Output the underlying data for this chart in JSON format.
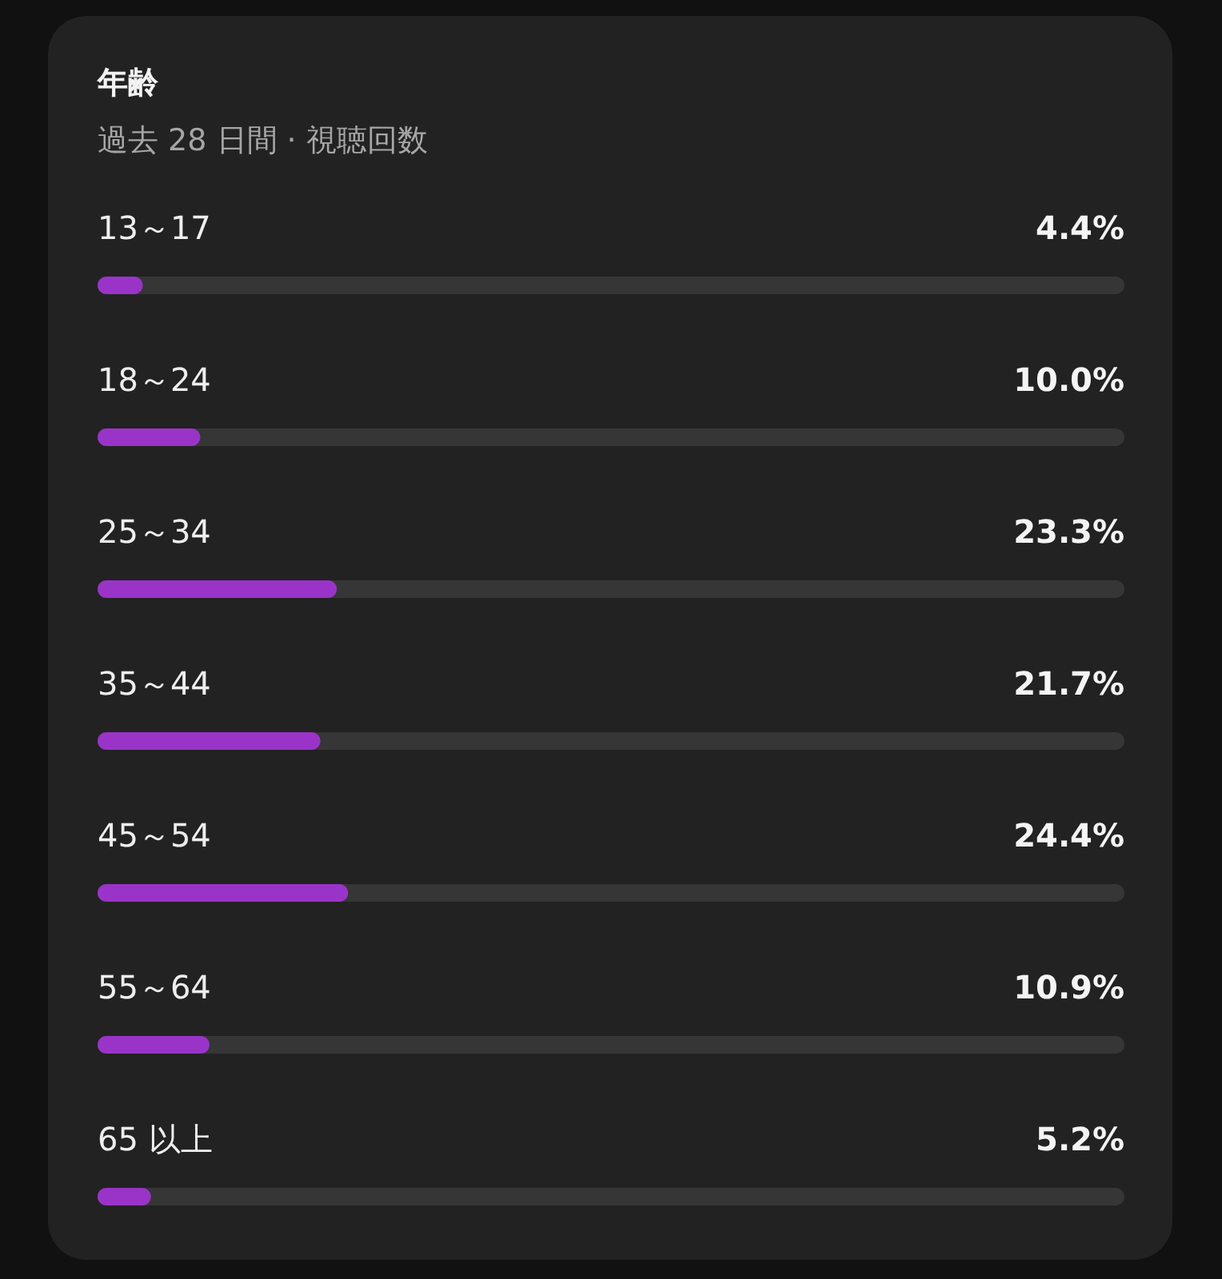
{
  "chart_data": {
    "type": "bar",
    "orientation": "horizontal",
    "title": "年齢",
    "subtitle": "過去 28 日間 · 視聴回数",
    "categories": [
      "13～17",
      "18～24",
      "25～34",
      "35～44",
      "45～54",
      "55～64",
      "65 以上"
    ],
    "values": [
      4.4,
      10.0,
      23.3,
      21.7,
      24.4,
      10.9,
      5.2
    ],
    "value_labels": [
      "4.4%",
      "10.0%",
      "23.3%",
      "21.7%",
      "24.4%",
      "10.9%",
      "5.2%"
    ],
    "color": "#9a34c8",
    "xlim": [
      0,
      100
    ]
  }
}
